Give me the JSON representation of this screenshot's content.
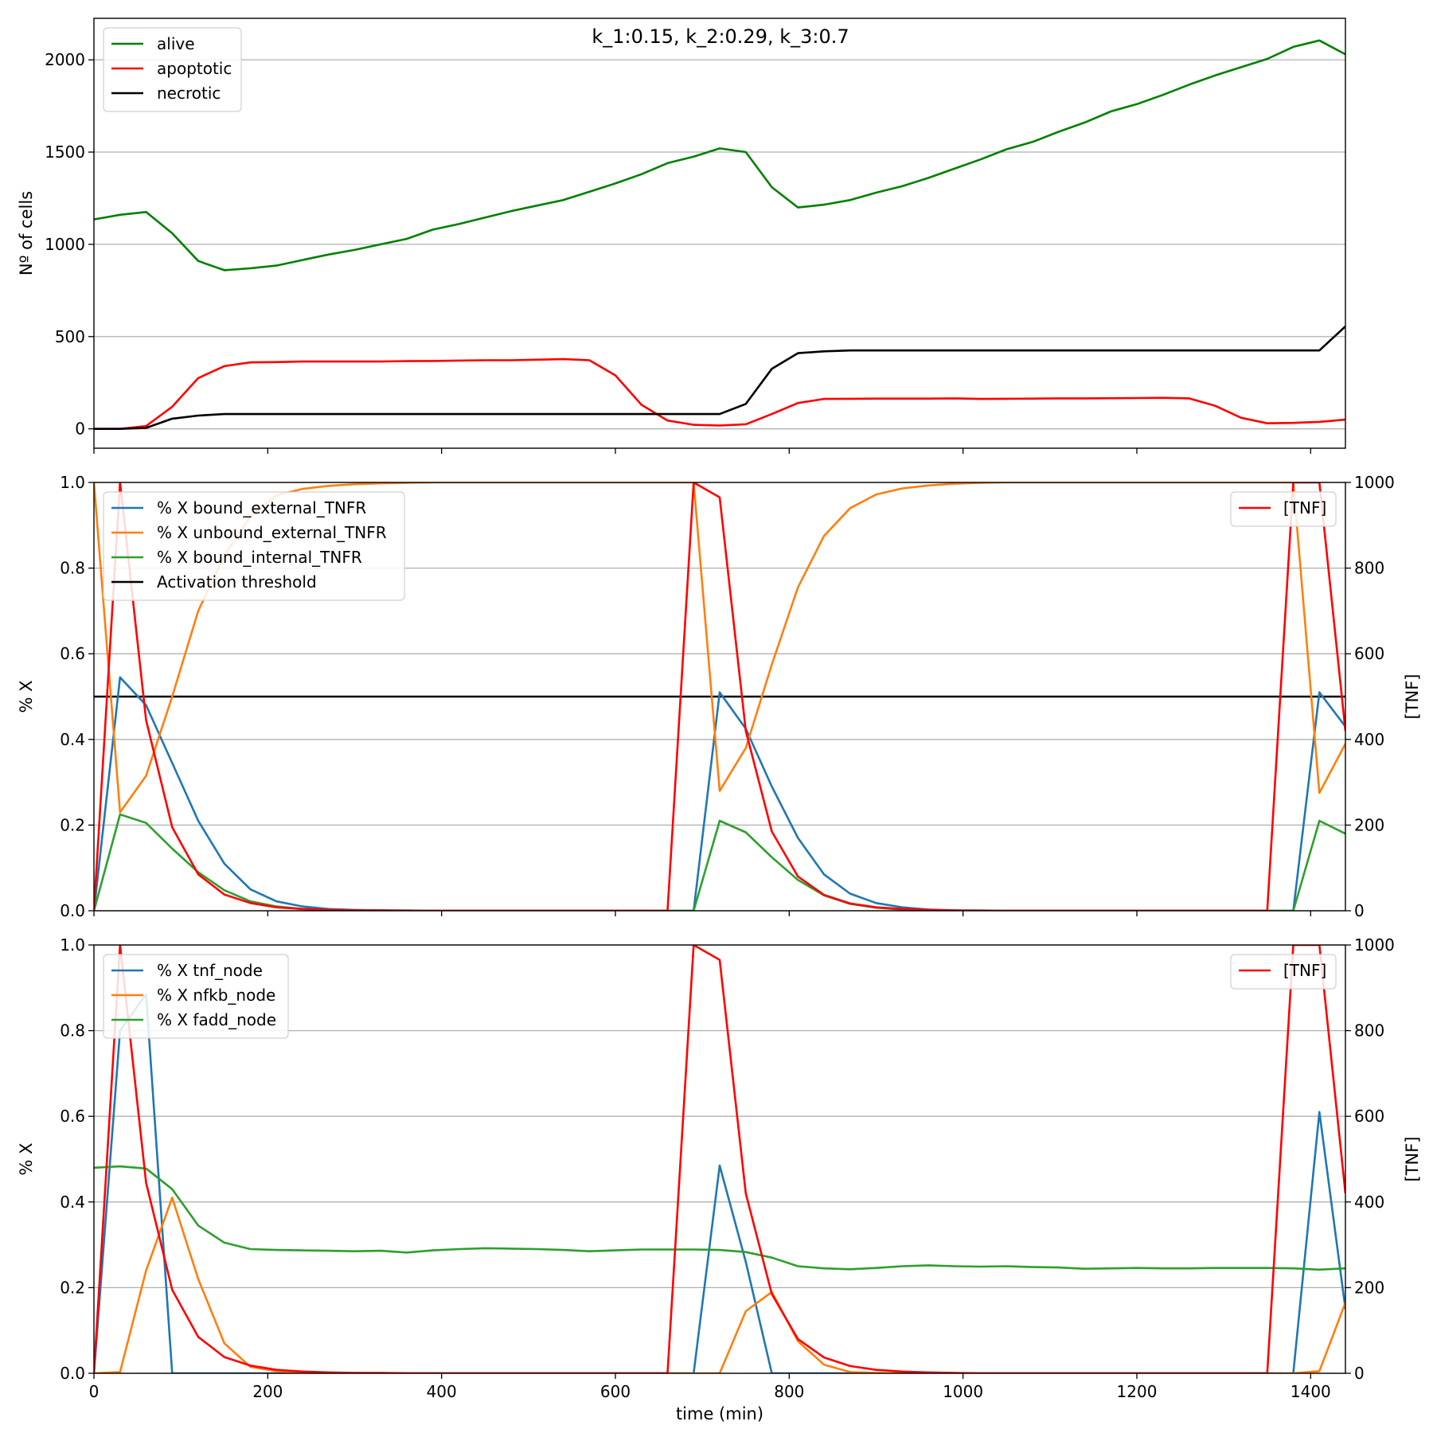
{
  "chart_data": [
    {
      "type": "line",
      "title": "k_1:0.15, k_2:0.29, k_3:0.7",
      "xlabel": "",
      "ylabel": "Nº of cells",
      "xlim": [
        0,
        1440
      ],
      "ylim": [
        -105,
        2225
      ],
      "xticks": [
        0,
        200,
        400,
        600,
        800,
        1000,
        1200,
        1400
      ],
      "yticks": [
        0,
        500,
        1000,
        1500,
        2000
      ],
      "grid": "y",
      "legend": "top-left",
      "x": [
        0,
        30,
        60,
        90,
        120,
        150,
        180,
        210,
        240,
        270,
        300,
        330,
        360,
        390,
        420,
        450,
        480,
        510,
        540,
        570,
        600,
        630,
        660,
        690,
        720,
        750,
        780,
        810,
        840,
        870,
        900,
        930,
        960,
        990,
        1020,
        1050,
        1080,
        1110,
        1140,
        1170,
        1200,
        1230,
        1260,
        1290,
        1320,
        1350,
        1380,
        1410,
        1440
      ],
      "series": [
        {
          "name": "alive",
          "color": "#008000",
          "values": [
            1135,
            1160,
            1175,
            1060,
            910,
            860,
            870,
            885,
            915,
            945,
            970,
            1000,
            1030,
            1080,
            1110,
            1145,
            1180,
            1210,
            1240,
            1285,
            1330,
            1380,
            1440,
            1475,
            1520,
            1500,
            1310,
            1200,
            1215,
            1240,
            1280,
            1315,
            1360,
            1410,
            1460,
            1515,
            1555,
            1610,
            1660,
            1720,
            1760,
            1810,
            1865,
            1915,
            1960,
            2005,
            2070,
            2105,
            2030
          ]
        },
        {
          "name": "apoptotic",
          "color": "#ff0000",
          "values": [
            0,
            0,
            15,
            120,
            275,
            340,
            360,
            362,
            365,
            365,
            365,
            365,
            367,
            368,
            370,
            372,
            372,
            375,
            378,
            372,
            290,
            130,
            45,
            22,
            18,
            25,
            80,
            140,
            162,
            163,
            164,
            164,
            164,
            165,
            162,
            163,
            164,
            165,
            165,
            166,
            167,
            168,
            165,
            125,
            60,
            30,
            32,
            38,
            50
          ]
        },
        {
          "name": "necrotic",
          "color": "#000000",
          "values": [
            0,
            0,
            5,
            55,
            72,
            80,
            80,
            80,
            80,
            80,
            80,
            80,
            80,
            80,
            80,
            80,
            80,
            80,
            80,
            80,
            80,
            80,
            80,
            80,
            80,
            135,
            325,
            410,
            420,
            425,
            425,
            425,
            425,
            425,
            425,
            425,
            425,
            425,
            425,
            425,
            425,
            425,
            425,
            425,
            425,
            425,
            425,
            425,
            555
          ]
        }
      ]
    },
    {
      "type": "line",
      "title": "",
      "xlabel": "",
      "ylabel": "% X",
      "ylabel_right": "[TNF]",
      "xlim": [
        0,
        1440
      ],
      "ylim": [
        0,
        1
      ],
      "ylim_right": [
        0,
        1000
      ],
      "xticks": [
        0,
        200,
        400,
        600,
        800,
        1000,
        1200,
        1400
      ],
      "yticks": [
        "0.0",
        "0.2",
        "0.4",
        "0.6",
        "0.8",
        "1.0"
      ],
      "yticks_right": [
        0,
        200,
        400,
        600,
        800,
        1000
      ],
      "grid": "y",
      "legend": "top-left",
      "legend_right": "top-right",
      "x": [
        0,
        30,
        60,
        90,
        120,
        150,
        180,
        210,
        240,
        270,
        300,
        330,
        360,
        390,
        420,
        450,
        480,
        510,
        540,
        570,
        600,
        630,
        660,
        690,
        720,
        750,
        780,
        810,
        840,
        870,
        900,
        930,
        960,
        990,
        1020,
        1050,
        1080,
        1110,
        1140,
        1170,
        1200,
        1230,
        1260,
        1290,
        1320,
        1350,
        1380,
        1410,
        1440
      ],
      "threshold": {
        "name": "Activation threshold",
        "color": "#000000",
        "value": 0.5
      },
      "series": [
        {
          "name": "% X bound_external_TNFR",
          "color": "#1f77b4",
          "values": [
            0,
            0.545,
            0.48,
            0.345,
            0.21,
            0.11,
            0.05,
            0.022,
            0.01,
            0.004,
            0.002,
            0.001,
            0.001,
            0,
            0,
            0,
            0,
            0,
            0,
            0,
            0,
            0,
            0,
            0,
            0.51,
            0.425,
            0.29,
            0.17,
            0.085,
            0.04,
            0.018,
            0.008,
            0.003,
            0.001,
            0.001,
            0,
            0,
            0,
            0,
            0,
            0,
            0,
            0,
            0,
            0,
            0,
            0,
            0.51,
            0.43
          ]
        },
        {
          "name": "% X unbound_external_TNFR",
          "color": "#ff7f0e",
          "values": [
            1.0,
            0.23,
            0.315,
            0.5,
            0.7,
            0.83,
            0.92,
            0.97,
            0.985,
            0.992,
            0.996,
            0.998,
            0.999,
            1,
            1,
            1,
            1,
            1,
            1,
            1,
            1,
            1,
            1,
            1,
            0.28,
            0.38,
            0.575,
            0.755,
            0.875,
            0.94,
            0.972,
            0.986,
            0.993,
            0.997,
            0.999,
            1,
            1,
            1,
            1,
            1,
            1,
            1,
            1,
            1,
            1,
            1,
            1,
            0.275,
            0.39
          ]
        },
        {
          "name": "% X bound_internal_TNFR",
          "color": "#2ca02c",
          "values": [
            0,
            0.225,
            0.205,
            0.145,
            0.09,
            0.048,
            0.022,
            0.01,
            0.004,
            0.002,
            0.001,
            0.001,
            0,
            0,
            0,
            0,
            0,
            0,
            0,
            0,
            0,
            0,
            0,
            0,
            0.21,
            0.183,
            0.125,
            0.072,
            0.036,
            0.016,
            0.007,
            0.003,
            0.001,
            0,
            0,
            0,
            0,
            0,
            0,
            0,
            0,
            0,
            0,
            0,
            0,
            0,
            0,
            0.21,
            0.18
          ]
        }
      ],
      "series_right": [
        {
          "name": "[TNF]",
          "color": "#ff0000",
          "values": [
            0,
            1000,
            445,
            195,
            85,
            38,
            18,
            8,
            4,
            2,
            1,
            1,
            0,
            0,
            0,
            0,
            0,
            0,
            0,
            0,
            0,
            0,
            0,
            1000,
            965,
            420,
            185,
            80,
            37,
            17,
            8,
            4,
            2,
            1,
            0,
            0,
            0,
            0,
            0,
            0,
            0,
            0,
            0,
            0,
            0,
            0,
            1000,
            1000,
            420
          ]
        }
      ]
    },
    {
      "type": "line",
      "title": "",
      "xlabel": "time (min)",
      "ylabel": "% X",
      "ylabel_right": "[TNF]",
      "xlim": [
        0,
        1440
      ],
      "ylim": [
        0,
        1
      ],
      "ylim_right": [
        0,
        1000
      ],
      "xticks": [
        0,
        200,
        400,
        600,
        800,
        1000,
        1200,
        1400
      ],
      "yticks": [
        "0.0",
        "0.2",
        "0.4",
        "0.6",
        "0.8",
        "1.0"
      ],
      "yticks_right": [
        0,
        200,
        400,
        600,
        800,
        1000
      ],
      "grid": "y",
      "legend": "top-left",
      "legend_right": "top-right",
      "x": [
        0,
        30,
        60,
        90,
        120,
        150,
        180,
        210,
        240,
        270,
        300,
        330,
        360,
        390,
        420,
        450,
        480,
        510,
        540,
        570,
        600,
        630,
        660,
        690,
        720,
        750,
        780,
        810,
        840,
        870,
        900,
        930,
        960,
        990,
        1020,
        1050,
        1080,
        1110,
        1140,
        1170,
        1200,
        1230,
        1260,
        1290,
        1320,
        1350,
        1380,
        1410,
        1440
      ],
      "series": [
        {
          "name": "% X tnf_node",
          "color": "#1f77b4",
          "values": [
            0,
            0.8,
            0.885,
            0,
            0,
            0,
            0,
            0,
            0,
            0,
            0,
            0,
            0,
            0,
            0,
            0,
            0,
            0,
            0,
            0,
            0,
            0,
            0,
            0,
            0.485,
            0.26,
            0,
            0,
            0,
            0,
            0,
            0,
            0,
            0,
            0,
            0,
            0,
            0,
            0,
            0,
            0,
            0,
            0,
            0,
            0,
            0,
            0,
            0.61,
            0.15
          ]
        },
        {
          "name": "% X nfkb_node",
          "color": "#ff7f0e",
          "values": [
            0,
            0.003,
            0.24,
            0.41,
            0.22,
            0.07,
            0.015,
            0.005,
            0.002,
            0.001,
            0,
            0,
            0,
            0,
            0,
            0,
            0,
            0,
            0,
            0,
            0,
            0,
            0,
            0,
            0,
            0.145,
            0.19,
            0.075,
            0.02,
            0.003,
            0.001,
            0,
            0,
            0,
            0,
            0,
            0,
            0,
            0,
            0,
            0,
            0,
            0,
            0,
            0,
            0,
            0,
            0.005,
            0.165
          ]
        },
        {
          "name": "% X fadd_node",
          "color": "#2ca02c",
          "values": [
            0.48,
            0.483,
            0.478,
            0.43,
            0.345,
            0.305,
            0.29,
            0.288,
            0.287,
            0.286,
            0.285,
            0.286,
            0.282,
            0.287,
            0.29,
            0.292,
            0.291,
            0.29,
            0.288,
            0.285,
            0.287,
            0.289,
            0.289,
            0.289,
            0.288,
            0.283,
            0.27,
            0.25,
            0.245,
            0.243,
            0.246,
            0.25,
            0.252,
            0.25,
            0.249,
            0.25,
            0.248,
            0.247,
            0.244,
            0.245,
            0.246,
            0.245,
            0.245,
            0.246,
            0.246,
            0.246,
            0.245,
            0.242,
            0.245
          ]
        }
      ],
      "series_right": [
        {
          "name": "[TNF]",
          "color": "#ff0000",
          "values": [
            0,
            1000,
            445,
            195,
            85,
            38,
            18,
            8,
            4,
            2,
            1,
            1,
            0,
            0,
            0,
            0,
            0,
            0,
            0,
            0,
            0,
            0,
            0,
            1000,
            965,
            420,
            185,
            80,
            37,
            17,
            8,
            4,
            2,
            1,
            0,
            0,
            0,
            0,
            0,
            0,
            0,
            0,
            0,
            0,
            0,
            0,
            1000,
            1000,
            420
          ]
        }
      ]
    }
  ]
}
